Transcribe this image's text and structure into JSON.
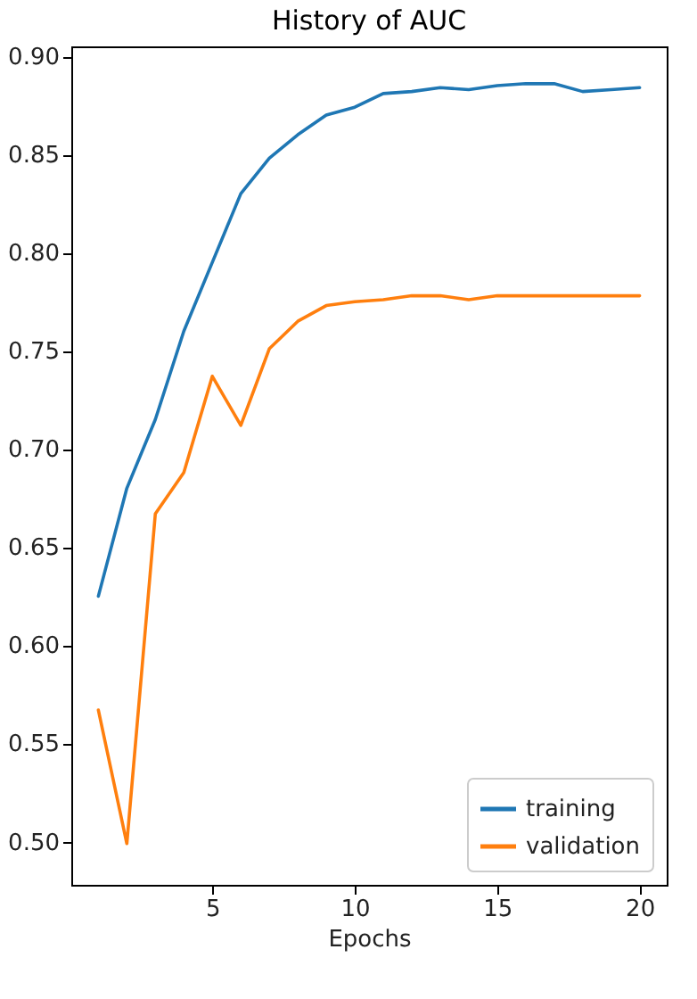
{
  "chart_data": {
    "type": "line",
    "title": "History of AUC",
    "xlabel": "Epochs",
    "x": [
      1,
      2,
      3,
      4,
      5,
      6,
      7,
      8,
      9,
      10,
      11,
      12,
      13,
      14,
      15,
      16,
      17,
      18,
      19,
      20
    ],
    "series": [
      {
        "name": "training",
        "color": "#1f77b4",
        "values": [
          0.625,
          0.68,
          0.715,
          0.76,
          0.795,
          0.83,
          0.848,
          0.86,
          0.87,
          0.874,
          0.881,
          0.882,
          0.884,
          0.883,
          0.885,
          0.886,
          0.886,
          0.882,
          0.883,
          0.884
        ]
      },
      {
        "name": "validation",
        "color": "#ff7f0e",
        "values": [
          0.567,
          0.499,
          0.667,
          0.688,
          0.737,
          0.712,
          0.751,
          0.765,
          0.773,
          0.775,
          0.776,
          0.778,
          0.778,
          0.776,
          0.778,
          0.778,
          0.778,
          0.778,
          0.778,
          0.778
        ]
      }
    ],
    "xlim": [
      0.05,
      20.95
    ],
    "xticks": [
      5,
      10,
      15,
      20
    ],
    "ylim": [
      0.478,
      0.905
    ],
    "yticks": [
      {
        "value": 0.5,
        "label": "0.50"
      },
      {
        "value": 0.55,
        "label": "0.55"
      },
      {
        "value": 0.6,
        "label": "0.60"
      },
      {
        "value": 0.65,
        "label": "0.65"
      },
      {
        "value": 0.7,
        "label": "0.70"
      },
      {
        "value": 0.75,
        "label": "0.75"
      },
      {
        "value": 0.8,
        "label": "0.80"
      },
      {
        "value": 0.85,
        "label": "0.85"
      },
      {
        "value": 0.9,
        "label": "0.90"
      }
    ],
    "grid": false,
    "legend": "bottom right",
    "marker": "none",
    "line_style": "solid"
  }
}
